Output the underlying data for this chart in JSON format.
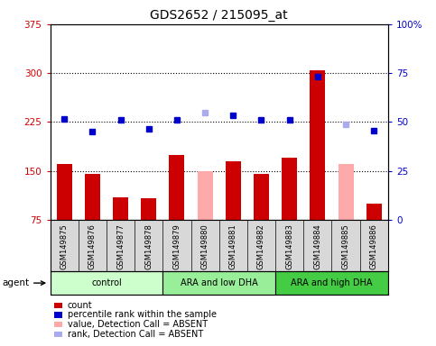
{
  "title": "GDS2652 / 215095_at",
  "samples": [
    "GSM149875",
    "GSM149876",
    "GSM149877",
    "GSM149878",
    "GSM149879",
    "GSM149880",
    "GSM149881",
    "GSM149882",
    "GSM149883",
    "GSM149884",
    "GSM149885",
    "GSM149886"
  ],
  "bar_values": [
    160,
    145,
    110,
    108,
    175,
    150,
    165,
    145,
    170,
    305,
    160,
    100
  ],
  "bar_colors": [
    "#cc0000",
    "#cc0000",
    "#cc0000",
    "#cc0000",
    "#cc0000",
    "#ffaaaa",
    "#cc0000",
    "#cc0000",
    "#cc0000",
    "#cc0000",
    "#ffaaaa",
    "#cc0000"
  ],
  "dot_values": [
    230,
    210,
    228,
    215,
    228,
    240,
    235,
    228,
    228,
    295,
    222,
    212
  ],
  "dot_colors": [
    "#0000cc",
    "#0000cc",
    "#0000cc",
    "#0000cc",
    "#0000cc",
    "#aaaaee",
    "#0000cc",
    "#0000cc",
    "#0000cc",
    "#0000cc",
    "#aaaaee",
    "#0000cc"
  ],
  "ylim_left": [
    75,
    375
  ],
  "ylim_right": [
    0,
    100
  ],
  "yticks_left": [
    75,
    150,
    225,
    300,
    375
  ],
  "yticks_right": [
    0,
    25,
    50,
    75,
    100
  ],
  "ylabel_left_color": "#cc0000",
  "ylabel_right_color": "#0000cc",
  "group_starts": [
    0,
    4,
    8
  ],
  "group_ends": [
    3,
    7,
    11
  ],
  "group_colors": [
    "#ccffcc",
    "#99ee99",
    "#44cc44"
  ],
  "group_labels": [
    "control",
    "ARA and low DHA",
    "ARA and high DHA"
  ],
  "agent_label": "agent",
  "legend_items": [
    {
      "label": "count",
      "color": "#cc0000"
    },
    {
      "label": "percentile rank within the sample",
      "color": "#0000cc"
    },
    {
      "label": "value, Detection Call = ABSENT",
      "color": "#ffaaaa"
    },
    {
      "label": "rank, Detection Call = ABSENT",
      "color": "#aaaaee"
    }
  ],
  "hlines": [
    150,
    225,
    300
  ],
  "bg_color": "#d8d8d8",
  "plot_bg": "#ffffff",
  "right_tick_labels": [
    "0",
    "25",
    "50",
    "75",
    "100%"
  ]
}
